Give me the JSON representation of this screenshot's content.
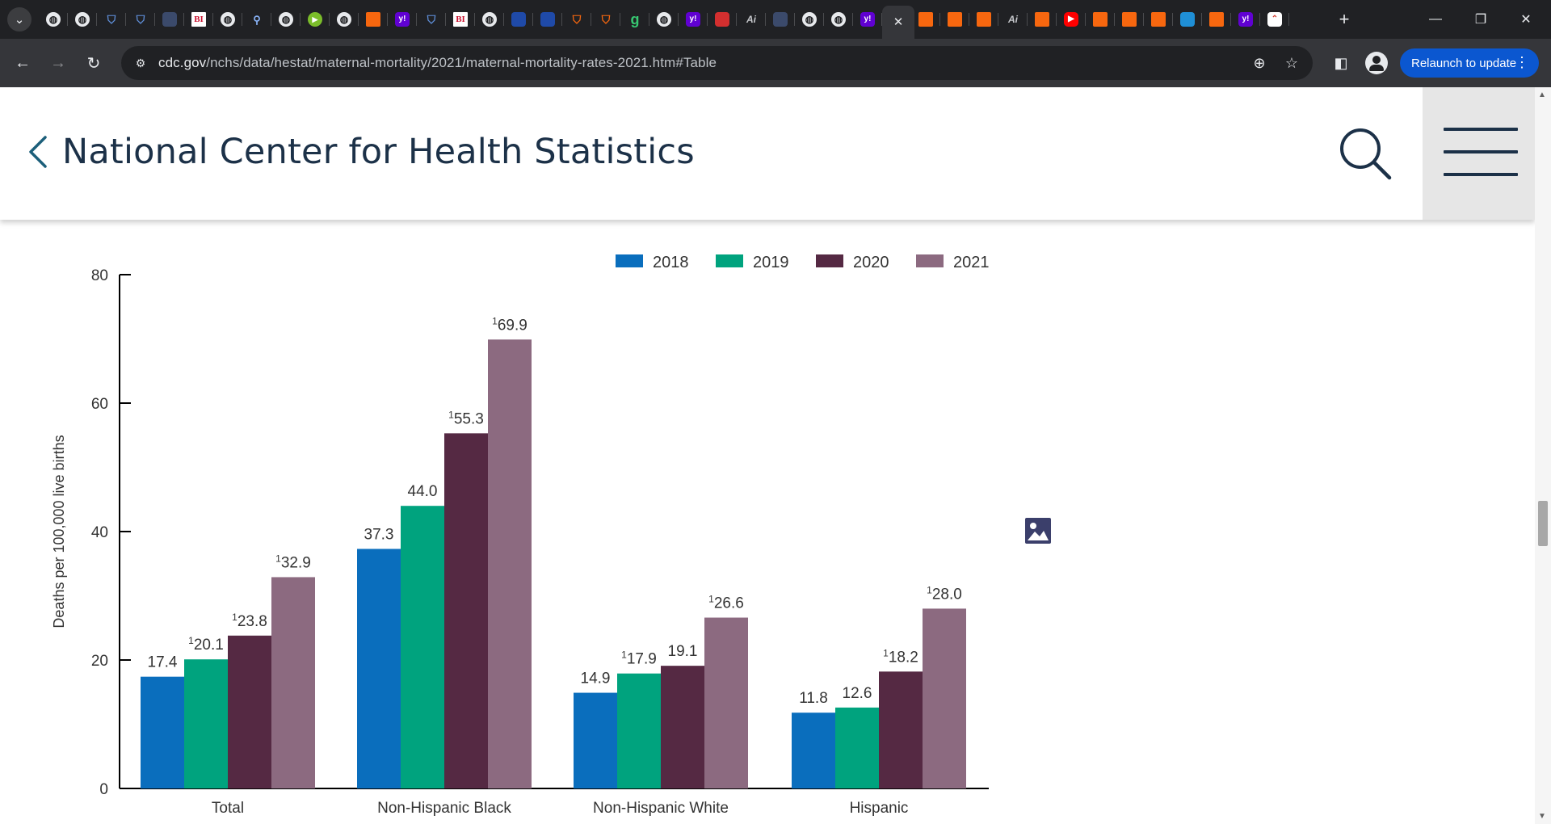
{
  "browser": {
    "tab_menu_icon": "chevron-down-icon",
    "active_tab_close": "✕",
    "new_tab": "+",
    "window_controls": {
      "minimize": "—",
      "restore": "❐",
      "close": "✕"
    },
    "address_host": "cdc.gov",
    "address_path": "/nchs/data/hestat/maternal-mortality/2021/maternal-mortality-rates-2021.htm#Table",
    "relaunch_label": "Relaunch to update",
    "relaunch_menu": "⋮"
  },
  "tabs": [
    {
      "icon": "globe"
    },
    {
      "icon": "globe"
    },
    {
      "icon": "shield"
    },
    {
      "icon": "shield"
    },
    {
      "icon": "dark"
    },
    {
      "icon": "bi",
      "text": "BI"
    },
    {
      "icon": "globe"
    },
    {
      "icon": "search"
    },
    {
      "icon": "globe"
    },
    {
      "icon": "play"
    },
    {
      "icon": "globe"
    },
    {
      "icon": "ribbon"
    },
    {
      "icon": "yahoo",
      "text": "y!"
    },
    {
      "icon": "shield"
    },
    {
      "icon": "bi",
      "text": "BI"
    },
    {
      "icon": "globe"
    },
    {
      "icon": "blue"
    },
    {
      "icon": "blue"
    },
    {
      "icon": "shield-o"
    },
    {
      "icon": "shield-o"
    },
    {
      "icon": "grn",
      "text": "g"
    },
    {
      "icon": "globe"
    },
    {
      "icon": "yahoo",
      "text": "y!"
    },
    {
      "icon": "red"
    },
    {
      "icon": "ai",
      "text": "Ai"
    },
    {
      "icon": "dark"
    },
    {
      "icon": "globe"
    },
    {
      "icon": "globe"
    },
    {
      "icon": "yahoo",
      "text": "y!"
    },
    {
      "icon": "close-x",
      "text": "✕",
      "active": true
    },
    {
      "icon": "ribbon"
    },
    {
      "icon": "ribbon"
    },
    {
      "icon": "ribbon"
    },
    {
      "icon": "ai",
      "text": "Ai"
    },
    {
      "icon": "ribbon"
    },
    {
      "icon": "yt"
    },
    {
      "icon": "ribbon"
    },
    {
      "icon": "ribbon"
    },
    {
      "icon": "ribbon"
    },
    {
      "icon": "teal"
    },
    {
      "icon": "ribbon"
    },
    {
      "icon": "yahoo",
      "text": "y!"
    },
    {
      "icon": "chart"
    }
  ],
  "header": {
    "site_title": "National Center for Health Statistics"
  },
  "colors": {
    "2018": "#0a6ebd",
    "2019": "#00a37e",
    "2020": "#552943",
    "2021": "#8c6a80",
    "axis": "#000000",
    "text": "#333333"
  },
  "chart_data": {
    "type": "bar",
    "title": "",
    "xlabel": "",
    "ylabel": "Deaths per 100,000 live births",
    "ylim": [
      0,
      80
    ],
    "yticks": [
      0,
      20,
      40,
      60,
      80
    ],
    "legend_position": "top",
    "categories": [
      "Total",
      "Non-Hispanic Black",
      "Non-Hispanic White",
      "Hispanic"
    ],
    "series": [
      {
        "name": "2018",
        "values": [
          17.4,
          37.3,
          14.9,
          11.8
        ],
        "labels": [
          "17.4",
          "37.3",
          "14.9",
          "11.8"
        ],
        "footnote": [
          false,
          false,
          false,
          false
        ]
      },
      {
        "name": "2019",
        "values": [
          20.1,
          44.0,
          17.9,
          12.6
        ],
        "labels": [
          "20.1",
          "44.0",
          "17.9",
          "12.6"
        ],
        "footnote": [
          true,
          false,
          true,
          false
        ]
      },
      {
        "name": "2020",
        "values": [
          23.8,
          55.3,
          19.1,
          18.2
        ],
        "labels": [
          "23.8",
          "55.3",
          "19.1",
          "18.2"
        ],
        "footnote": [
          true,
          true,
          false,
          true
        ]
      },
      {
        "name": "2021",
        "values": [
          32.9,
          69.9,
          26.6,
          28.0
        ],
        "labels": [
          "32.9",
          "69.9",
          "26.6",
          "28.0"
        ],
        "footnote": [
          true,
          true,
          true,
          true
        ]
      }
    ],
    "footnote_marker": "1"
  }
}
